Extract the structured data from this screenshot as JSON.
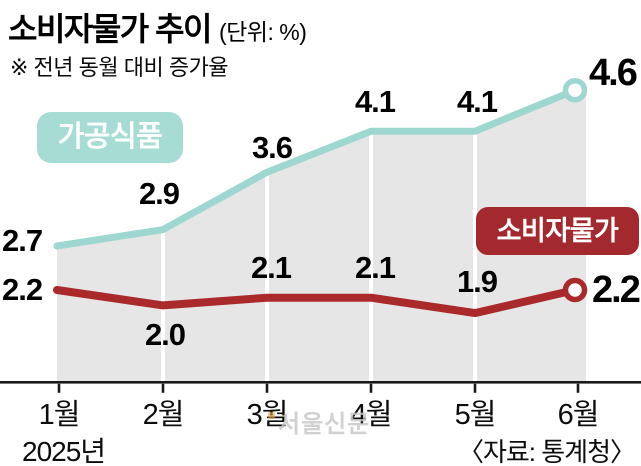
{
  "header": {
    "title": "소비자물가 추이",
    "unit": "(단위: %)",
    "subtitle": "※ 전년 동월 대비 증가율"
  },
  "legend": {
    "processed_food": "가공식품",
    "consumer_price": "소비자물가"
  },
  "axis": {
    "months": [
      "1월",
      "2월",
      "3월",
      "4월",
      "5월",
      "6월"
    ],
    "year": "2025년"
  },
  "source": "〈자료: 통계청〉",
  "watermark": "서울신문",
  "colors": {
    "teal": "#9ed7d0",
    "teal_badge": "#a6dcd4",
    "red": "#aa2a2c",
    "red_badge": "#a4292e",
    "area": "#e6e6e6",
    "axis": "#1a1a1a",
    "grid": "#ffffff"
  },
  "chart_data": {
    "type": "line",
    "title": "소비자물가 추이 (단위: %)",
    "subtitle": "전년 동월 대비 증가율",
    "categories": [
      "1월",
      "2월",
      "3월",
      "4월",
      "5월",
      "6월"
    ],
    "x_year": "2025년",
    "series": [
      {
        "name": "가공식품",
        "values": [
          2.7,
          2.9,
          3.6,
          4.1,
          4.1,
          4.6
        ],
        "color": "#9ed7d0",
        "area_fill": true,
        "end_marker": "open-circle"
      },
      {
        "name": "소비자물가",
        "values": [
          2.2,
          2.0,
          2.1,
          2.1,
          1.9,
          2.2
        ],
        "color": "#aa2a2c",
        "area_fill": false,
        "end_marker": "open-circle"
      }
    ],
    "unit": "%",
    "ylim": [
      1.5,
      5.0
    ],
    "grid": "vertical white separators per month",
    "legend_position": "badges on plot",
    "source": "자료: 통계청"
  }
}
